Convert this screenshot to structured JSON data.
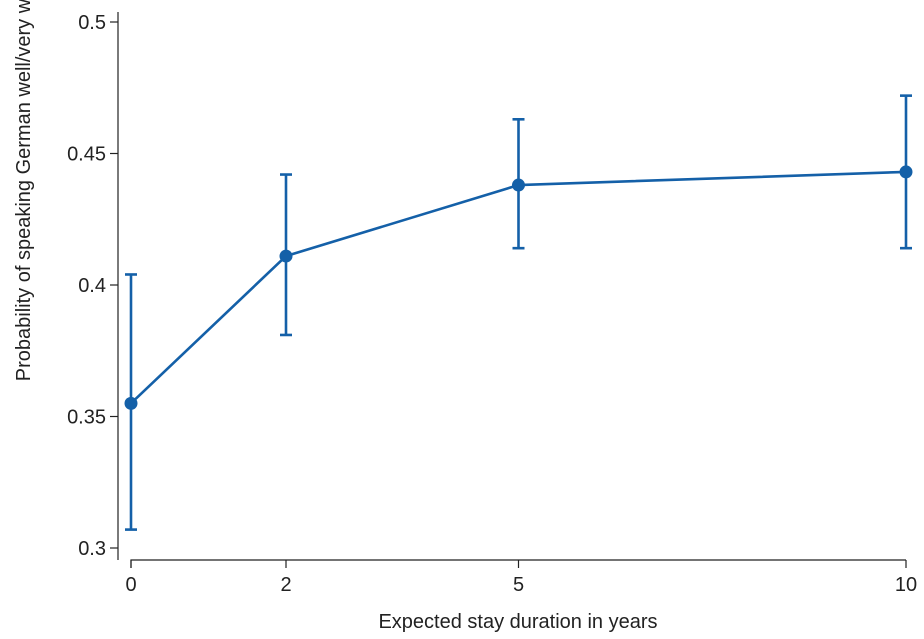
{
  "chart_data": {
    "type": "line",
    "title": "",
    "xlabel": "Expected stay duration in years",
    "ylabel": "Probability of speaking German well/very well",
    "x": [
      0,
      2,
      5,
      10
    ],
    "xticks": [
      0,
      2,
      5,
      10
    ],
    "xtick_labels": [
      "0",
      "2",
      "5",
      "10"
    ],
    "yticks": [
      0.3,
      0.35,
      0.4,
      0.45,
      0.5
    ],
    "ytick_labels": [
      "0.3",
      "0.35",
      "0.4",
      "0.45",
      "0.5"
    ],
    "xlim": [
      0,
      10
    ],
    "ylim": [
      0.3,
      0.5
    ],
    "grid": false,
    "legend": "none",
    "series": [
      {
        "values": [
          0.355,
          0.411,
          0.438,
          0.443
        ],
        "ci_lower": [
          0.307,
          0.381,
          0.414,
          0.414
        ],
        "ci_upper": [
          0.404,
          0.442,
          0.463,
          0.472
        ],
        "color": "#1460a8"
      }
    ]
  }
}
